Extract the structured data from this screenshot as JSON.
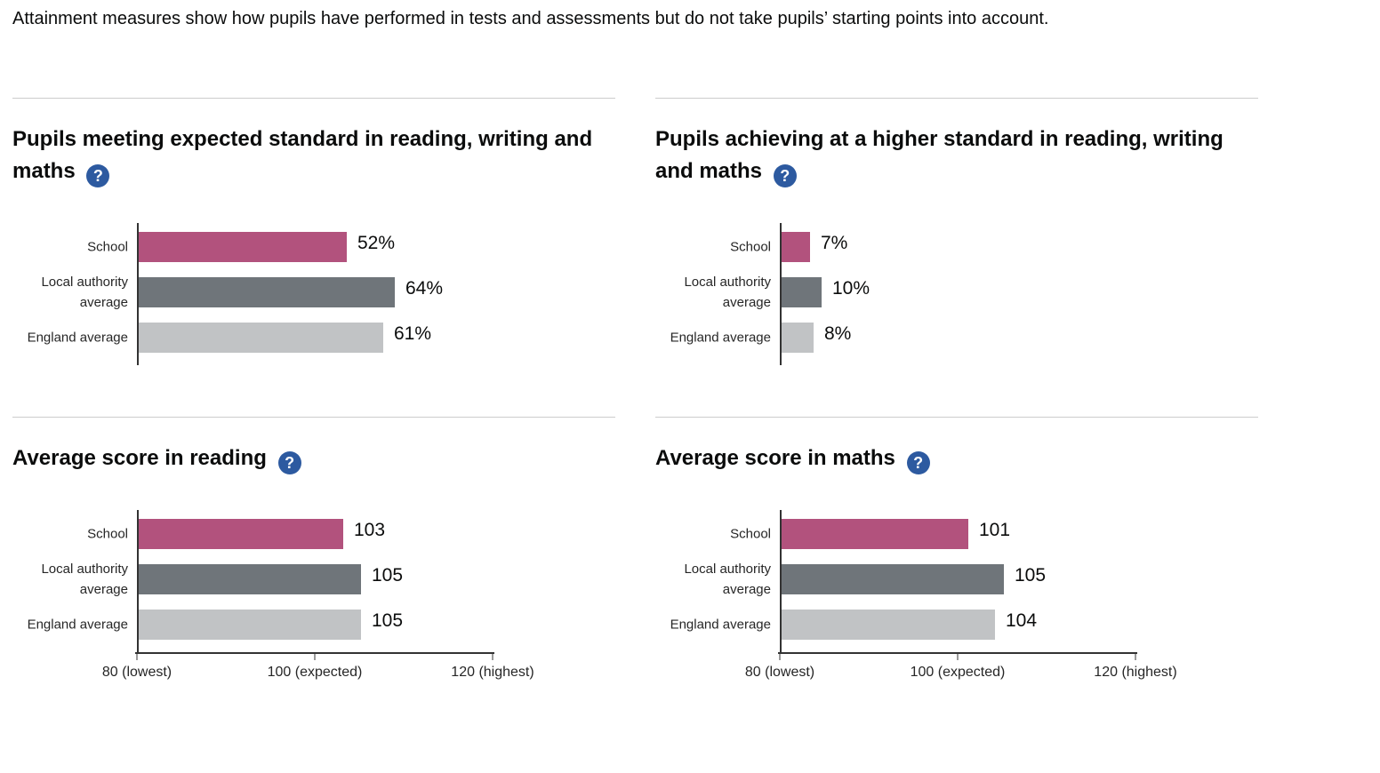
{
  "intro": "Attainment measures show how pupils have performed in tests and assessments but do not take pupils’ starting points into account.",
  "help_icon": {
    "glyph": "?",
    "meaning": "help"
  },
  "bar_colors": [
    "#b2527d",
    "#6f757a",
    "#c1c3c5"
  ],
  "colors": {
    "school_bar": "#b2527d",
    "local_authority_bar": "#6f757a",
    "england_bar": "#c1c3c5",
    "help_icon_bg": "#2d5aa0",
    "axis_line": "#333333",
    "tick": "#9a9a9a",
    "divider": "#cccccc",
    "text": "#0b0c0c"
  },
  "chart_data": [
    {
      "type": "bar",
      "orientation": "horizontal",
      "title": "Pupils meeting expected standard in reading, writing and maths",
      "categories": [
        "School",
        "Local authority average",
        "England average"
      ],
      "values": [
        52,
        64,
        61
      ],
      "value_labels": [
        "52%",
        "64%",
        "61%"
      ],
      "xlim": [
        0,
        100
      ],
      "ticks": [],
      "grid": false,
      "legend": "none"
    },
    {
      "type": "bar",
      "orientation": "horizontal",
      "title": "Pupils achieving at a higher standard in reading, writing and maths",
      "categories": [
        "School",
        "Local authority average",
        "England average"
      ],
      "values": [
        7,
        10,
        8
      ],
      "value_labels": [
        "7%",
        "10%",
        "8%"
      ],
      "xlim": [
        0,
        100
      ],
      "ticks": [],
      "grid": false,
      "legend": "none"
    },
    {
      "type": "bar",
      "orientation": "horizontal",
      "title": "Average score in reading",
      "categories": [
        "School",
        "Local authority average",
        "England average"
      ],
      "values": [
        103,
        105,
        105
      ],
      "value_labels": [
        "103",
        "105",
        "105"
      ],
      "xlim": [
        80,
        120
      ],
      "ticks": [
        {
          "value": 80,
          "label": "80 (lowest)"
        },
        {
          "value": 100,
          "label": "100 (expected)"
        },
        {
          "value": 120,
          "label": "120 (highest)"
        }
      ],
      "grid": false,
      "legend": "none"
    },
    {
      "type": "bar",
      "orientation": "horizontal",
      "title": "Average score in maths",
      "categories": [
        "School",
        "Local authority average",
        "England average"
      ],
      "values": [
        101,
        105,
        104
      ],
      "value_labels": [
        "101",
        "105",
        "104"
      ],
      "xlim": [
        80,
        120
      ],
      "ticks": [
        {
          "value": 80,
          "label": "80 (lowest)"
        },
        {
          "value": 100,
          "label": "100 (expected)"
        },
        {
          "value": 120,
          "label": "120 (highest)"
        }
      ],
      "grid": false,
      "legend": "none"
    }
  ]
}
